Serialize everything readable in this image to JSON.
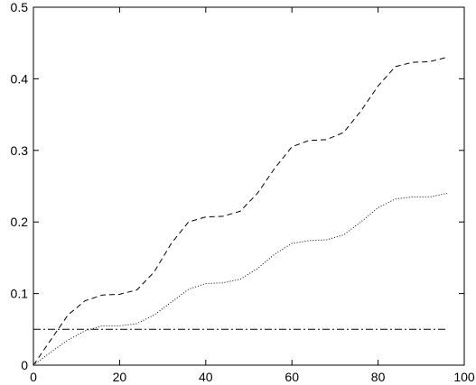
{
  "chart_data": {
    "type": "line",
    "x": [
      0,
      4,
      8,
      12,
      16,
      20,
      24,
      28,
      32,
      36,
      40,
      44,
      48,
      52,
      56,
      60,
      64,
      68,
      72,
      76,
      80,
      84,
      88,
      92,
      96
    ],
    "series": [
      {
        "color": "#000000",
        "linestyle": "dashed",
        "values": [
          0,
          0.035,
          0.07,
          0.09,
          0.098,
          0.099,
          0.105,
          0.13,
          0.17,
          0.2,
          0.207,
          0.208,
          0.215,
          0.24,
          0.275,
          0.305,
          0.314,
          0.315,
          0.325,
          0.355,
          0.39,
          0.417,
          0.423,
          0.424,
          0.43
        ]
      },
      {
        "color": "#000000",
        "linestyle": "dotted",
        "values": [
          0,
          0.018,
          0.035,
          0.048,
          0.055,
          0.055,
          0.058,
          0.07,
          0.088,
          0.106,
          0.114,
          0.115,
          0.12,
          0.135,
          0.155,
          0.17,
          0.174,
          0.175,
          0.182,
          0.2,
          0.22,
          0.232,
          0.235,
          0.235,
          0.24
        ]
      },
      {
        "color": "#000000",
        "linestyle": "dashdot",
        "values": [
          0.05,
          0.05,
          0.05,
          0.05,
          0.05,
          0.05,
          0.05,
          0.05,
          0.05,
          0.05,
          0.05,
          0.05,
          0.05,
          0.05,
          0.05,
          0.05,
          0.05,
          0.05,
          0.05,
          0.05,
          0.05,
          0.05,
          0.05,
          0.05,
          0.05
        ]
      }
    ],
    "xlim": [
      0,
      100
    ],
    "xticks": [
      0,
      20,
      40,
      60,
      80,
      100
    ],
    "ylim": [
      0,
      0.5
    ],
    "yticks": [
      0,
      0.1,
      0.2,
      0.3,
      0.4,
      0.5
    ],
    "grid": false
  }
}
